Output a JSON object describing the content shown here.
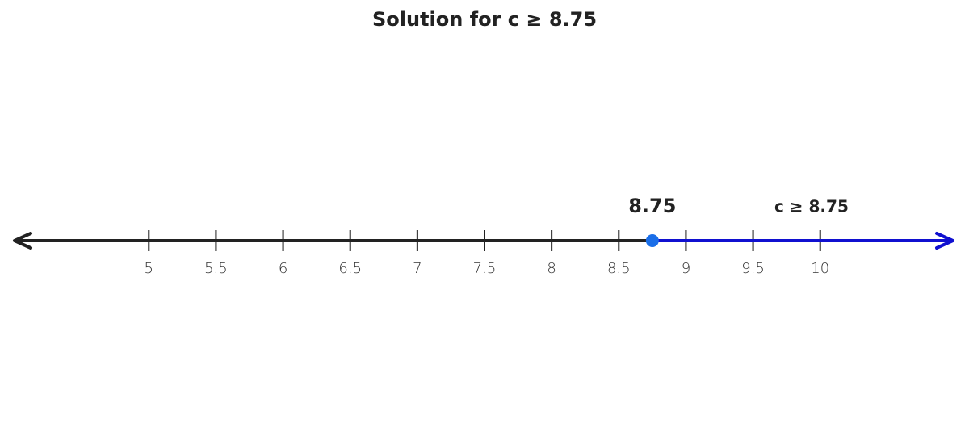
{
  "chart_data": {
    "type": "numberline",
    "title": "Solution for c ≥ 8.75",
    "xlim": [
      4,
      11
    ],
    "xticks": [
      5,
      5.5,
      6,
      6.5,
      7,
      7.5,
      8,
      8.5,
      9,
      9.5,
      10
    ],
    "line_color": "#222222",
    "point": {
      "value": 8.75,
      "closed": true,
      "color": "#1a6ee8"
    },
    "ray": {
      "direction": "right",
      "color": "#1010d0",
      "label": "c ≥ 8.75"
    }
  }
}
